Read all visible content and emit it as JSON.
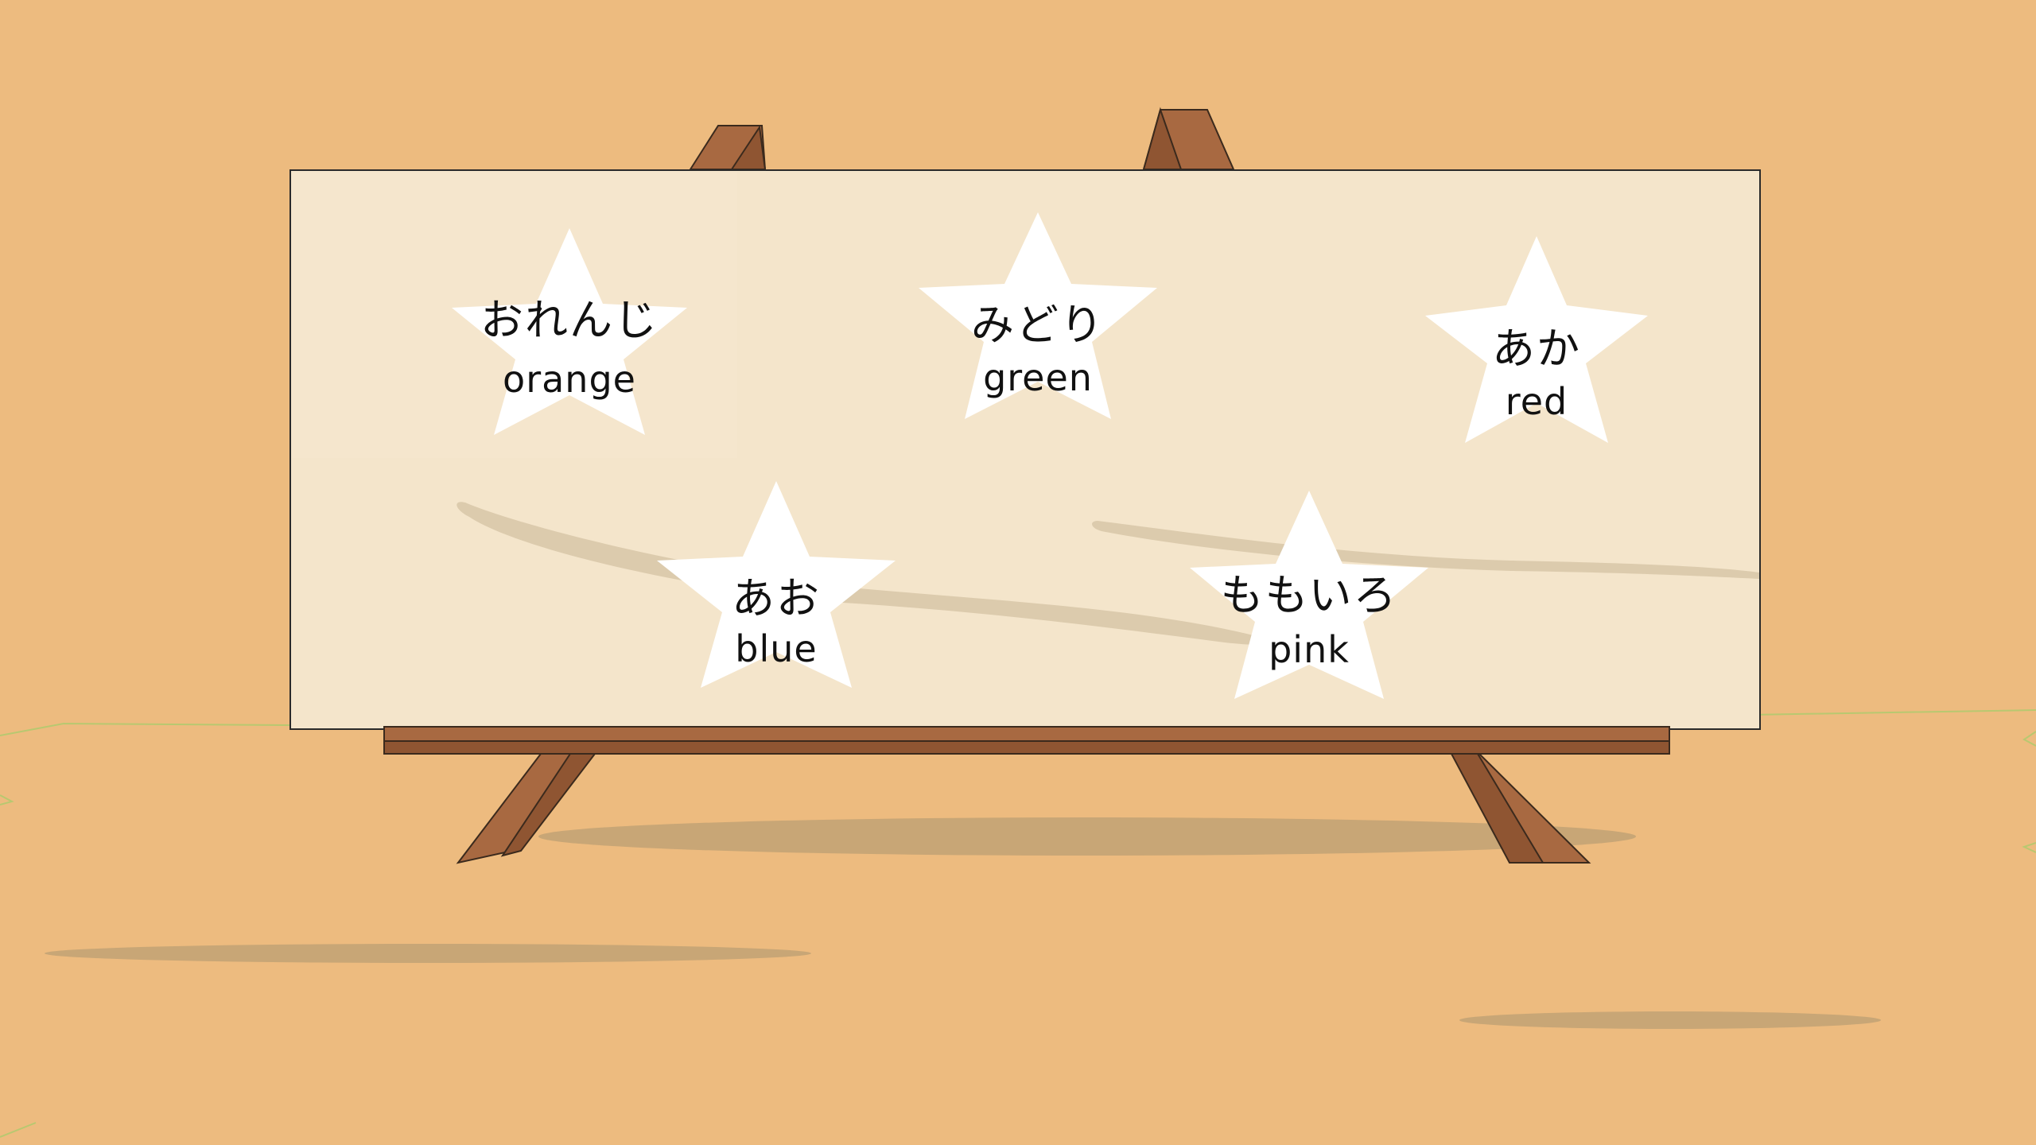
{
  "scene": {
    "name": "color-vocabulary-easel",
    "colors": {
      "floor": "#edbb7f",
      "board": "#f4e5cb",
      "wood": "#a86941",
      "wood_dark": "#8f5532",
      "star": "#ffffff",
      "shadow": "#c8a676"
    }
  },
  "stars": [
    {
      "kana": "おれんじ",
      "romaji": "orange"
    },
    {
      "kana": "みどり",
      "romaji": "green"
    },
    {
      "kana": "あか",
      "romaji": "red"
    },
    {
      "kana": "あお",
      "romaji": "blue"
    },
    {
      "kana": "ももいろ",
      "romaji": "pink"
    }
  ]
}
